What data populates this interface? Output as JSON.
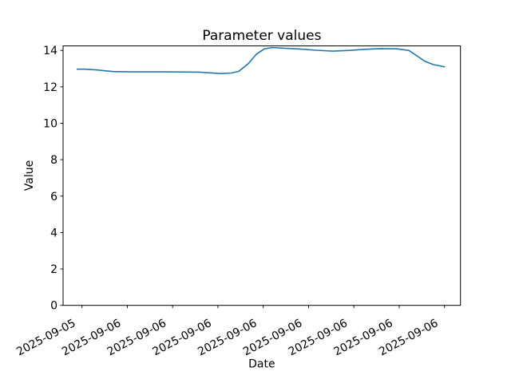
{
  "figure": {
    "background": "#ffffff"
  },
  "chart_data": {
    "type": "line",
    "title": "Parameter values",
    "xlabel": "Date",
    "ylabel": "Value",
    "x_tick_labels": [
      "2025-09-05",
      "2025-09-06",
      "2025-09-06",
      "2025-09-06",
      "2025-09-06",
      "2025-09-06",
      "2025-09-06",
      "2025-09-06",
      "2025-09-06"
    ],
    "y_ticks": [
      0,
      2,
      4,
      6,
      8,
      10,
      12,
      14
    ],
    "ylim": [
      0,
      14.25
    ],
    "x_tick_rotation_deg": 28,
    "grid": false,
    "legend": false,
    "line_color": "#1f77b4",
    "axes_color": "#000000",
    "text_color": "#000000",
    "series": [
      {
        "x_frac": [
          0.0,
          0.02,
          0.051,
          0.098,
          0.148,
          0.246,
          0.333,
          0.362,
          0.392,
          0.42,
          0.44,
          0.466,
          0.488,
          0.509,
          0.529,
          0.566,
          0.605,
          0.651,
          0.696,
          0.74,
          0.783,
          0.827,
          0.87,
          0.903,
          0.947,
          0.97,
          1.0
        ],
        "values": [
          12.97,
          12.97,
          12.93,
          12.84,
          12.82,
          12.82,
          12.81,
          12.77,
          12.73,
          12.76,
          12.85,
          13.28,
          13.8,
          14.08,
          14.16,
          14.12,
          14.08,
          14.01,
          13.96,
          14.0,
          14.06,
          14.1,
          14.09,
          14.0,
          13.4,
          13.22,
          13.1
        ]
      }
    ]
  }
}
